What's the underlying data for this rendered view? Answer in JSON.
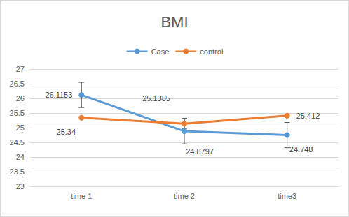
{
  "chart_data": {
    "type": "line",
    "title": "BMI",
    "categories": [
      "time 1",
      "time 2",
      "time3"
    ],
    "series": [
      {
        "name": "Case",
        "color": "#5b9bd5",
        "values": [
          26.1153,
          24.8797,
          24.748
        ],
        "errors": [
          0.43,
          0.43,
          0.43
        ],
        "marker": "circle",
        "line_style": "solid"
      },
      {
        "name": "control",
        "color": "#ed7d31",
        "values": [
          25.34,
          25.1385,
          25.412
        ],
        "errors": [
          null,
          0.18,
          null
        ],
        "marker": "circle",
        "line_style": "solid"
      }
    ],
    "ylim": [
      23,
      27
    ],
    "yticks": [
      23,
      23.5,
      24,
      24.5,
      25,
      25.5,
      26,
      26.5,
      27
    ],
    "grid": true,
    "legend": "top",
    "data_labels": true
  }
}
